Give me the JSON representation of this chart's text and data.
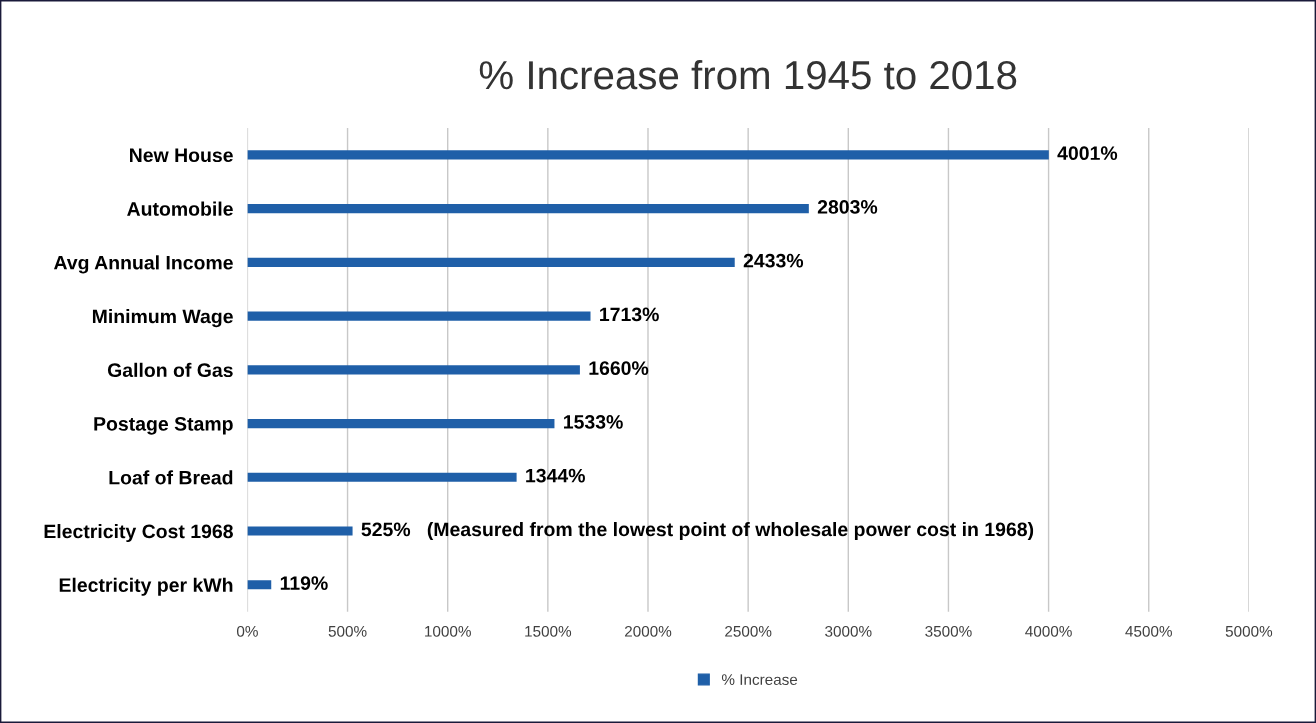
{
  "chart_data": {
    "type": "bar",
    "orientation": "horizontal",
    "title": "% Increase from 1945 to 2018",
    "categories": [
      "New House",
      "Automobile",
      "Avg Annual Income",
      "Minimum Wage",
      "Gallon of Gas",
      "Postage Stamp",
      "Loaf of Bread",
      "Electricity Cost 1968",
      "Electricity per kWh"
    ],
    "series": [
      {
        "name": "% Increase",
        "color": "#1f5fa8",
        "values": [
          4001,
          2803,
          2433,
          1713,
          1660,
          1533,
          1344,
          525,
          119
        ],
        "value_labels": [
          "4001%",
          "2803%",
          "2433%",
          "1713%",
          "1660%",
          "1533%",
          "1344%",
          "525%   (Measured from the lowest point of wholesale power cost in 1968)",
          "119%"
        ]
      }
    ],
    "xlim": [
      0,
      5000
    ],
    "xticks": [
      {
        "value": 0,
        "label": "0%"
      },
      {
        "value": 500,
        "label": "500%"
      },
      {
        "value": 1000,
        "label": "1000%"
      },
      {
        "value": 1500,
        "label": "1500%"
      },
      {
        "value": 2000,
        "label": "2000%"
      },
      {
        "value": 2500,
        "label": "2500%"
      },
      {
        "value": 3000,
        "label": "3000%"
      },
      {
        "value": 3500,
        "label": "3500%"
      },
      {
        "value": 4000,
        "label": "4000%"
      },
      {
        "value": 4500,
        "label": "4500%"
      },
      {
        "value": 5000,
        "label": "5000%"
      }
    ],
    "grid": "x",
    "legend": "bottom"
  }
}
